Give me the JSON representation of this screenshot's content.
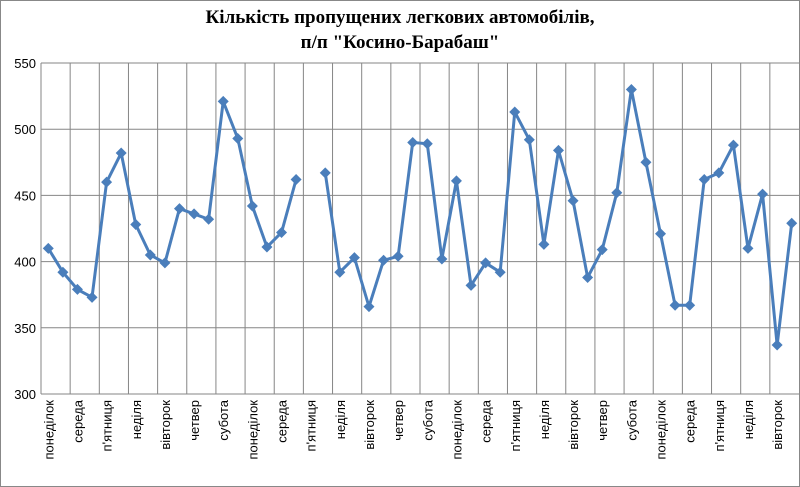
{
  "chart_data": {
    "type": "line",
    "title": [
      "Кількість пропущених легкових автомобілів,",
      "п/п \"Косино-Барабаш\""
    ],
    "categories": [
      "понеділок",
      null,
      "середа",
      null,
      "п'ятниця",
      null,
      "неділя",
      null,
      "вівторок",
      null,
      "четвер",
      null,
      "субота",
      null,
      "понеділок",
      null,
      "середа",
      null,
      "п'ятниця",
      null,
      "неділя",
      null,
      "вівторок",
      null,
      "четвер",
      null,
      "субота",
      null,
      "понеділок",
      null,
      "середа",
      null,
      "п'ятниця",
      null,
      "неділя",
      null,
      "вівторок",
      null,
      "четвер",
      null,
      "субота",
      null,
      "понеділок",
      null,
      "середа",
      null,
      "п'ятниця",
      null,
      "неділя",
      null,
      "вівторок",
      null
    ],
    "series": [
      {
        "color": "#4a7ebb",
        "values": [
          410,
          392,
          379,
          373,
          460,
          482,
          428,
          405,
          399,
          440,
          436,
          432,
          521,
          493,
          442,
          411,
          422,
          462,
          null,
          467,
          392,
          403,
          366,
          401,
          404,
          490,
          489,
          402,
          461,
          382,
          399,
          392,
          513,
          492,
          413,
          484,
          446,
          388,
          409,
          452,
          530,
          475,
          421,
          367,
          367,
          462,
          467,
          488,
          410,
          451,
          337,
          429
        ]
      }
    ],
    "ylim": [
      300,
      550
    ],
    "yticks": [
      300,
      350,
      400,
      450,
      500,
      550
    ],
    "grid": true
  }
}
